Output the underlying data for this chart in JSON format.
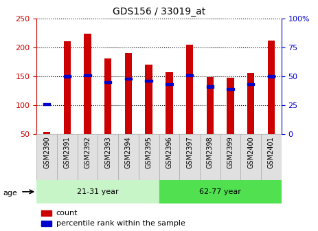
{
  "title": "GDS156 / 33019_at",
  "categories": [
    "GSM2390",
    "GSM2391",
    "GSM2392",
    "GSM2393",
    "GSM2394",
    "GSM2395",
    "GSM2396",
    "GSM2397",
    "GSM2398",
    "GSM2399",
    "GSM2400",
    "GSM2401"
  ],
  "count_values": [
    54,
    211,
    224,
    181,
    190,
    170,
    157,
    205,
    149,
    148,
    156,
    212
  ],
  "percentile_values": [
    26,
    50,
    51,
    45,
    48,
    46,
    43,
    51,
    41,
    39,
    43,
    50
  ],
  "bar_color": "#cc0000",
  "percentile_color": "#0000cc",
  "ylim_left": [
    50,
    250
  ],
  "ylim_right": [
    0,
    100
  ],
  "yticks_left": [
    50,
    100,
    150,
    200,
    250
  ],
  "yticks_right": [
    0,
    25,
    50,
    75,
    100
  ],
  "groups": [
    {
      "label": "21-31 year",
      "start": 0,
      "end": 6,
      "color": "#c8f5c8"
    },
    {
      "label": "62-77 year",
      "start": 6,
      "end": 12,
      "color": "#50e050"
    }
  ],
  "age_label": "age",
  "legend_items": [
    {
      "label": "count",
      "color": "#cc0000"
    },
    {
      "label": "percentile rank within the sample",
      "color": "#0000cc"
    }
  ],
  "bar_width": 0.35,
  "background_color": "#ffffff"
}
